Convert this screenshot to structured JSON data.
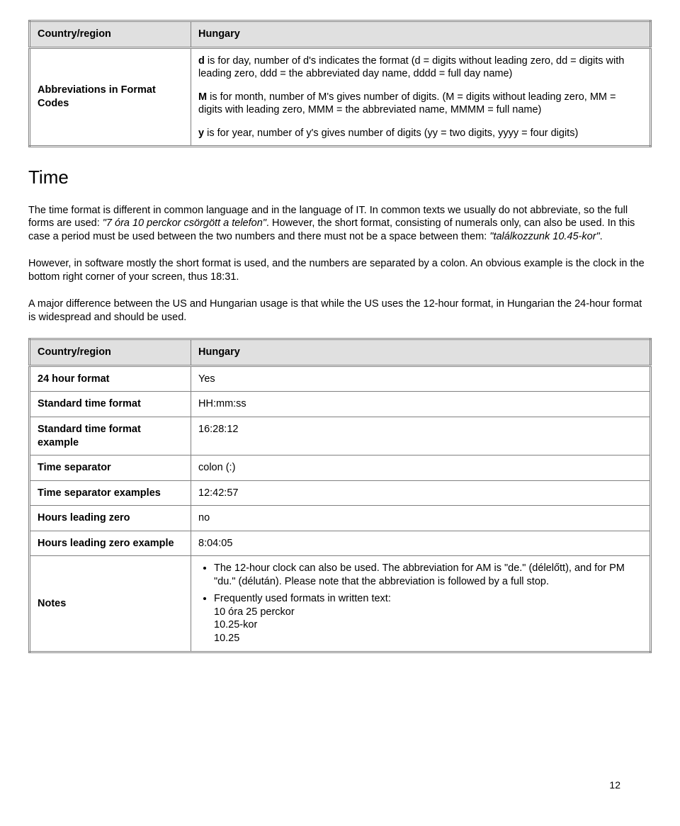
{
  "table1": {
    "row1": {
      "label": "Country/region",
      "value": "Hungary"
    },
    "row2": {
      "label": "Abbreviations in Format Codes",
      "p1_pre": "d",
      "p1_rest": " is for day, number of d's indicates the format (d = digits without leading zero, dd = digits with leading zero, ddd = the abbreviated day name, dddd = full day name)",
      "p2_pre": "M",
      "p2_rest": " is for month, number of M's gives number of digits. (M = digits without leading zero, MM = digits with leading zero, MMM = the abbreviated name, MMMM = full name)",
      "p3_pre": "y",
      "p3_rest": " is for year, number of y's gives number of digits (yy = two digits, yyyy = four digits)"
    }
  },
  "section_heading": "Time",
  "para1_a": "The time format is different in common language and in the language of IT. In common texts we usually do not abbreviate, so the full forms are used: ",
  "para1_i1": "\"7 óra 10 perckor csörgött a telefon\"",
  "para1_b": ". However, the short format, consisting of numerals only, can also be used. In this case a period must be used between the two numbers and there must not be a space between them: ",
  "para1_i2": "\"találkozzunk 10.45-kor\"",
  "para1_c": ".",
  "para2": "However, in software mostly the short format is used, and the numbers are separated by a colon. An obvious example is the clock in the bottom right corner of your screen, thus 18:31.",
  "para3": "A major difference between the US and Hungarian usage is that while the US uses the 12-hour format, in Hungarian the 24-hour format is widespread and should be used.",
  "table2": {
    "r1": {
      "label": "Country/region",
      "value": "Hungary"
    },
    "r2": {
      "label": "24 hour format",
      "value": "Yes"
    },
    "r3": {
      "label": "Standard time format",
      "value": "HH:mm:ss"
    },
    "r4": {
      "label": "Standard time format example",
      "value": "16:28:12"
    },
    "r5": {
      "label": "Time separator",
      "value": "colon (:)"
    },
    "r6": {
      "label": "Time separator examples",
      "value": "12:42:57"
    },
    "r7": {
      "label": "Hours leading zero",
      "value": "no"
    },
    "r8": {
      "label": "Hours leading zero example",
      "value": "8:04:05"
    },
    "r9": {
      "label": "Notes",
      "li1": "The 12-hour clock can also be used. The abbreviation for AM is \"de.\" (délelőtt), and for PM \"du.\" (délután). Please note that the abbreviation is followed by a full stop.",
      "li2_head": "Frequently used formats in written text:",
      "li2_a": "10 óra 25 perckor",
      "li2_b": "10.25-kor",
      "li2_c": "10.25"
    }
  },
  "page_number": "12"
}
